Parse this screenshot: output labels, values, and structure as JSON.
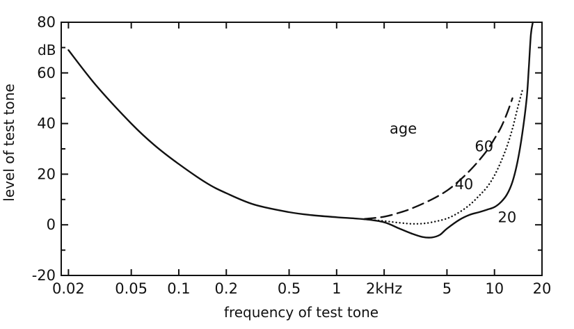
{
  "chart_data": {
    "type": "line",
    "title": "",
    "xlabel": "frequency of test tone",
    "ylabel": "level of test tone",
    "yunit": "dB",
    "xscale": "log",
    "xlim": [
      0.018,
      20
    ],
    "ylim": [
      -20,
      80
    ],
    "grid": false,
    "xticks": [
      {
        "value": 0.02,
        "label": "0.02"
      },
      {
        "value": 0.05,
        "label": "0.05"
      },
      {
        "value": 0.1,
        "label": "0.1"
      },
      {
        "value": 0.2,
        "label": "0.2"
      },
      {
        "value": 0.5,
        "label": "0.5"
      },
      {
        "value": 1,
        "label": "1"
      },
      {
        "value": 2,
        "label": "2kHz"
      },
      {
        "value": 5,
        "label": "5"
      },
      {
        "value": 10,
        "label": "10"
      },
      {
        "value": 20,
        "label": "20"
      }
    ],
    "yticks": [
      {
        "value": 80,
        "label": "80"
      },
      {
        "value": 60,
        "label": "60"
      },
      {
        "value": 40,
        "label": "40"
      },
      {
        "value": 20,
        "label": "20"
      },
      {
        "value": 0,
        "label": "0"
      },
      {
        "value": -20,
        "label": "-20"
      }
    ],
    "yminorticks": [
      70,
      50,
      30,
      10,
      -10
    ],
    "annotation": "age",
    "series": [
      {
        "name": "20",
        "style": "solid",
        "x": [
          0.02,
          0.03,
          0.05,
          0.07,
          0.1,
          0.15,
          0.2,
          0.3,
          0.5,
          0.7,
          1,
          1.5,
          2,
          2.5,
          3,
          3.5,
          4,
          4.5,
          5,
          6,
          7,
          8,
          9,
          10,
          11,
          12,
          13,
          14,
          15,
          16,
          16.5,
          17,
          17.5
        ],
        "y": [
          69,
          55,
          40,
          31.5,
          24,
          16.5,
          12.5,
          8,
          5,
          3.8,
          3,
          2.2,
          1,
          -1.5,
          -3.5,
          -4.8,
          -5,
          -4,
          -1.5,
          2,
          4,
          5,
          6,
          7,
          9,
          12,
          17,
          25,
          36,
          50,
          62,
          75,
          80
        ]
      },
      {
        "name": "40",
        "style": "dotted",
        "x": [
          1.5,
          2,
          2.5,
          3,
          3.5,
          4,
          5,
          6,
          7,
          8,
          9,
          10,
          11,
          12,
          13,
          14,
          15
        ],
        "y": [
          2.2,
          1.5,
          0.8,
          0.4,
          0.5,
          1,
          2.5,
          5,
          8,
          11.5,
          15,
          19.5,
          25,
          31,
          38,
          46,
          53
        ]
      },
      {
        "name": "60",
        "style": "dashed",
        "x": [
          1.5,
          2,
          2.5,
          3,
          4,
          5,
          6,
          7,
          8,
          9,
          10,
          11,
          12,
          13
        ],
        "y": [
          2.3,
          3.2,
          4.8,
          6.5,
          10,
          13.5,
          17.5,
          21.5,
          25.5,
          29.5,
          34,
          38.5,
          44,
          50
        ]
      }
    ],
    "curve_labels": [
      {
        "series": "60",
        "text": "60",
        "x": 7.5,
        "y": 31
      },
      {
        "series": "40",
        "text": "40",
        "x": 5.6,
        "y": 16
      },
      {
        "series": "20",
        "text": "20",
        "x": 10.5,
        "y": 3
      }
    ]
  }
}
